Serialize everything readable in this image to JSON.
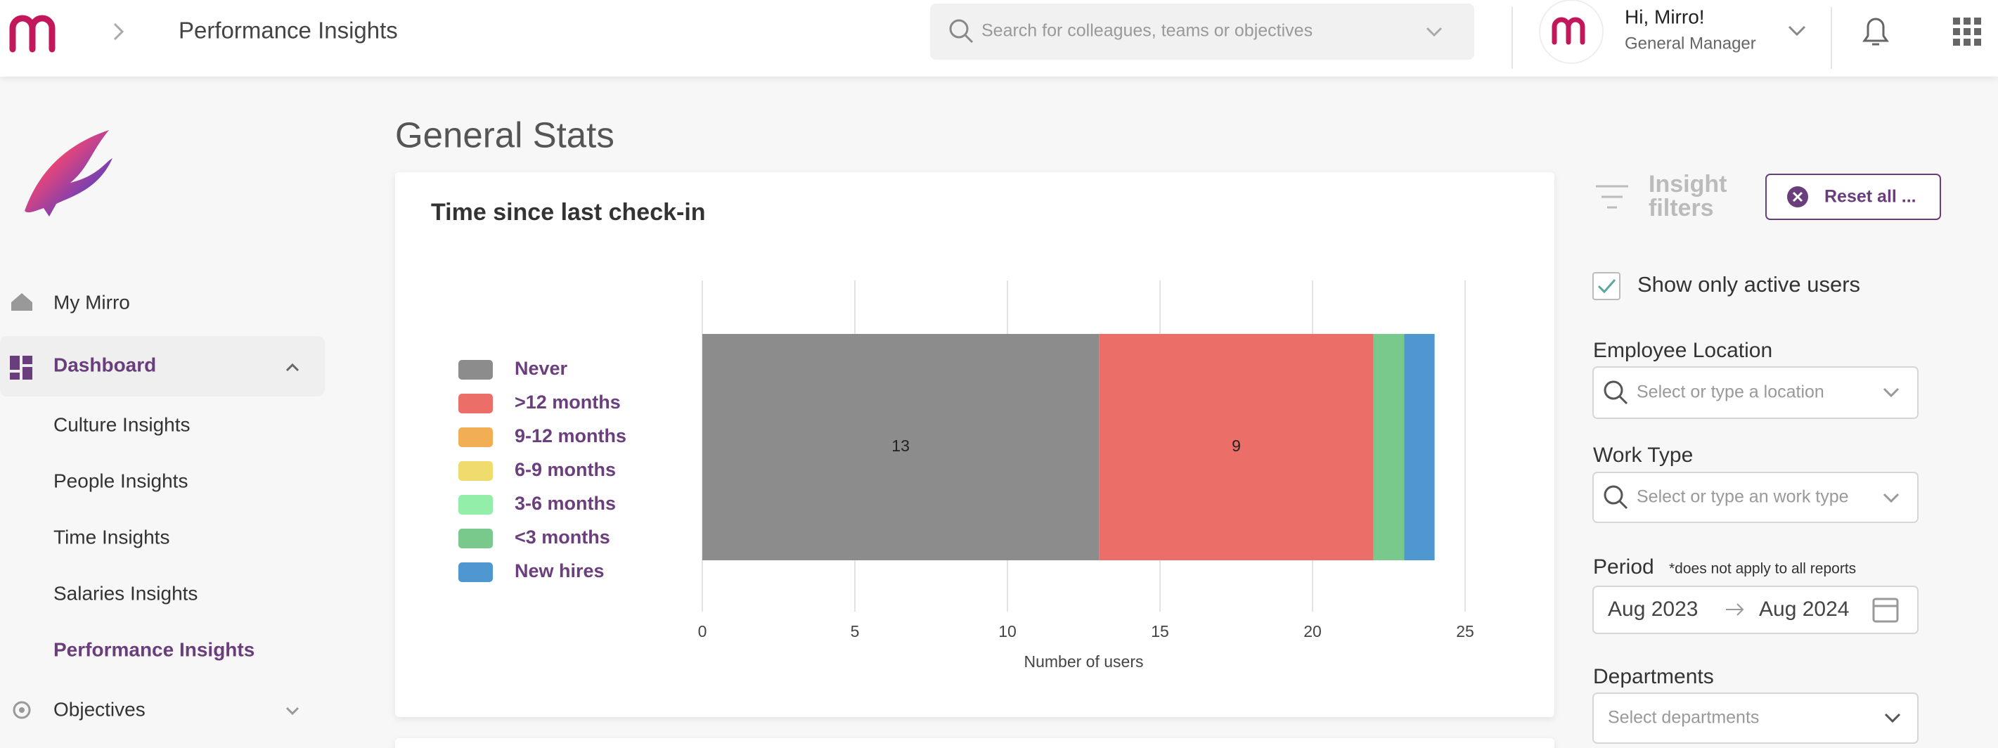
{
  "header": {
    "title": "Performance Insights",
    "search_placeholder": "Search for colleagues, teams or objectives",
    "greeting": "Hi, Mirro!",
    "role": "General Manager"
  },
  "sidebar": {
    "items": [
      "My Mirro",
      "Dashboard",
      "Culture Insights",
      "People Insights",
      "Time Insights",
      "Salaries Insights",
      "Performance Insights",
      "Objectives"
    ]
  },
  "main": {
    "title": "General Stats"
  },
  "chart_data": {
    "type": "stacked-bar-horizontal",
    "title": "Time since last check-in",
    "x_label": "Number of users",
    "categories": [
      null
    ],
    "xlim": [
      0,
      25
    ],
    "xticks": [
      0,
      5,
      10,
      15,
      20,
      25
    ],
    "grid": true,
    "legend": "left",
    "series": [
      {
        "name": "Never",
        "color": "#8c8c8c",
        "values": [
          13
        ],
        "data_labels": true
      },
      {
        "name": ">12 months",
        "color": "#eb6e69",
        "values": [
          9
        ],
        "data_labels": true
      },
      {
        "name": "9-12 months",
        "color": "#f1ae54",
        "values": [
          0
        ],
        "data_labels": false
      },
      {
        "name": "6-9 months",
        "color": "#f0dc6c",
        "values": [
          0
        ],
        "data_labels": false
      },
      {
        "name": "3-6 months",
        "color": "#93eeaa",
        "values": [
          0
        ],
        "data_labels": false
      },
      {
        "name": "<3 months",
        "color": "#78c98b",
        "values": [
          1
        ],
        "data_labels": false
      },
      {
        "name": "New hires",
        "color": "#4f97d0",
        "values": [
          1
        ],
        "data_labels": false
      }
    ]
  },
  "filters": {
    "title_line1": "Insight",
    "title_line2": "filters",
    "reset": "Reset all ...",
    "active_users": "Show only active users",
    "location": {
      "label": "Employee Location",
      "placeholder": "Select or type a location"
    },
    "work_type": {
      "label": "Work Type",
      "placeholder": "Select or type an work type"
    },
    "period": {
      "label": "Period",
      "note": "*does not apply to all reports",
      "from": "Aug 2023",
      "to": "Aug 2024"
    },
    "departments": {
      "label": "Departments",
      "placeholder": "Select departments"
    }
  }
}
